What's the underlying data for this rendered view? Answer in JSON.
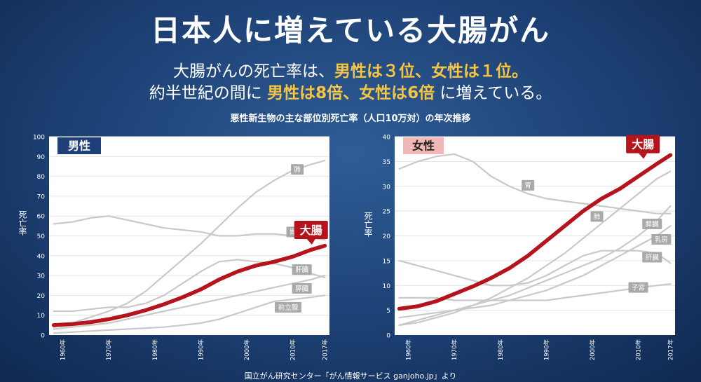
{
  "header": {
    "title": "日本人に増えている大腸がん",
    "line1_a": "大腸がんの死亡率は、",
    "line1_b": "男性は３位、女性は１位。",
    "line2_a": "約半世紀の間に ",
    "line2_b": "男性は8倍、女性は6倍",
    "line2_c": " に増えている。"
  },
  "chart_title": "悪性新生物の主な部位別死亡率（人口10万対）の年次推移",
  "source": "国立がん研究センター「がん情報サービス ganjoho.jp」より",
  "colors": {
    "highlight": "#f4c542",
    "colon": "#b5141c",
    "other": "#c9c9c9",
    "male_badge": "#1f3f7a",
    "female_badge": "#f2b7b7"
  },
  "chart_data": [
    {
      "type": "line",
      "badge": "男性",
      "ylabel": "死亡率",
      "xlabel": "",
      "ylim": [
        0,
        100
      ],
      "yticks": [
        "0",
        "10",
        "20",
        "30",
        "40",
        "50",
        "60",
        "70",
        "80",
        "90",
        "100"
      ],
      "xticks": [
        "1960年",
        "1970年",
        "1980年",
        "1990年",
        "2000年",
        "2010年",
        "2017年"
      ],
      "x": [
        1958,
        1962,
        1966,
        1970,
        1974,
        1978,
        1982,
        1986,
        1990,
        1994,
        1998,
        2002,
        2006,
        2010,
        2014,
        2017
      ],
      "series": [
        {
          "name": "大腸",
          "highlight": true,
          "values": [
            5,
            5.5,
            6.5,
            8,
            10,
            12.5,
            15.5,
            19,
            23,
            28,
            32,
            35,
            37,
            39.5,
            43,
            45
          ]
        },
        {
          "name": "肺",
          "values": [
            4,
            6,
            9,
            12,
            16,
            22,
            30,
            38,
            46,
            55,
            64,
            72,
            78,
            83,
            86,
            88
          ]
        },
        {
          "name": "胃",
          "values": [
            56,
            57,
            59,
            60,
            58,
            56,
            54,
            53,
            52,
            50,
            50,
            51,
            51,
            50,
            49,
            48
          ]
        },
        {
          "name": "肝臓",
          "values": [
            12,
            12,
            13,
            14,
            14,
            16,
            20,
            26,
            32,
            37,
            38,
            37,
            36,
            34,
            31,
            29
          ]
        },
        {
          "name": "膵臓",
          "values": [
            3,
            4,
            5,
            6,
            8,
            10,
            12,
            14,
            16,
            18,
            20,
            22,
            24,
            26,
            28,
            30
          ]
        },
        {
          "name": "前立腺",
          "values": [
            1,
            1.5,
            2,
            2.5,
            3,
            3.5,
            4,
            5,
            6,
            8,
            11,
            14,
            17,
            18,
            19,
            20
          ]
        }
      ]
    },
    {
      "type": "line",
      "badge": "女性",
      "ylabel": "死亡率",
      "xlabel": "",
      "ylim": [
        0,
        40
      ],
      "yticks": [
        "0",
        "5",
        "10",
        "15",
        "20",
        "25",
        "30",
        "35",
        "40"
      ],
      "xticks": [
        "1960年",
        "1970年",
        "1980年",
        "1990年",
        "2000年",
        "2010年",
        "2017年"
      ],
      "x": [
        1958,
        1962,
        1966,
        1970,
        1974,
        1978,
        1982,
        1986,
        1990,
        1994,
        1998,
        2002,
        2006,
        2010,
        2014,
        2017
      ],
      "series": [
        {
          "name": "大腸",
          "highlight": true,
          "values": [
            5.3,
            5.8,
            6.8,
            8.3,
            9.8,
            11.5,
            13.5,
            16,
            19,
            22,
            25,
            27.5,
            29.5,
            32,
            34.5,
            36.3
          ]
        },
        {
          "name": "胃",
          "values": [
            33.5,
            35,
            36,
            36.5,
            35,
            32,
            30,
            28.5,
            27.5,
            27,
            26.5,
            26,
            25.5,
            25,
            24.5,
            24.5
          ]
        },
        {
          "name": "肺",
          "values": [
            2,
            2.5,
            3.5,
            4.5,
            6,
            7.5,
            9.5,
            11.5,
            14,
            16.5,
            19.5,
            22.5,
            25.5,
            28.5,
            31.5,
            33
          ]
        },
        {
          "name": "膵臓",
          "values": [
            2,
            3,
            4,
            5,
            6,
            7,
            8,
            9.5,
            11,
            12.5,
            14,
            15.5,
            17.5,
            20,
            23,
            26
          ]
        },
        {
          "name": "乳房",
          "values": [
            3.5,
            4,
            4.5,
            5,
            5.5,
            6,
            7,
            8,
            9,
            10.5,
            12,
            14,
            16,
            18,
            20,
            22
          ]
        },
        {
          "name": "肝臓",
          "values": [
            15,
            14,
            13,
            12,
            11,
            10,
            10,
            10.5,
            12,
            14,
            16,
            17,
            17,
            17,
            16.5,
            14.5
          ]
        },
        {
          "name": "子宮",
          "values": [
            7.5,
            7.5,
            7.5,
            7,
            7,
            7,
            7,
            7,
            7,
            7.5,
            8,
            8.5,
            9,
            9.5,
            10,
            10.3
          ]
        }
      ]
    }
  ]
}
